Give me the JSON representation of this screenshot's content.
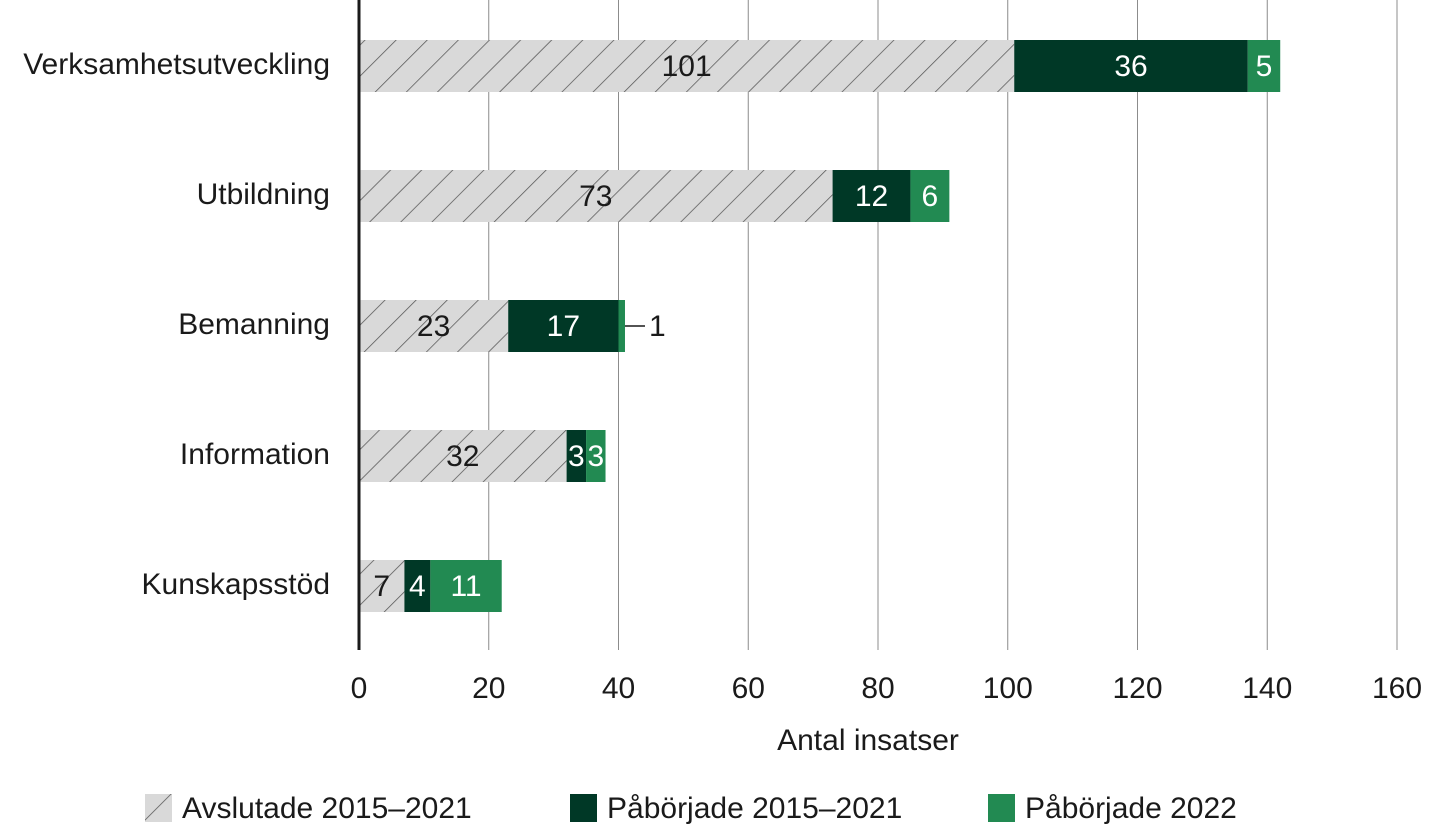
{
  "chart_data": {
    "type": "hbar_stacked",
    "x_label": "Antal insatser",
    "categories": [
      "Verksamhetsutveckling",
      "Utbildning",
      "Bemanning",
      "Information",
      "Kunskapsstöd"
    ],
    "series": [
      {
        "name": "Avslutade 2015–2021",
        "color": "#d9d9d9",
        "hatch": true,
        "values": [
          101,
          73,
          23,
          32,
          7
        ]
      },
      {
        "name": "Påbörjade 2015–2021",
        "color": "#003826",
        "values": [
          36,
          12,
          17,
          3,
          4
        ]
      },
      {
        "name": "Påbörjade 2022",
        "color": "#228a52",
        "values": [
          5,
          6,
          1,
          3,
          11
        ]
      }
    ],
    "xlim": [
      0,
      160
    ],
    "xticks": [
      0,
      20,
      40,
      60,
      80,
      100,
      120,
      140,
      160
    ],
    "grid": true,
    "legend": "bottom"
  }
}
